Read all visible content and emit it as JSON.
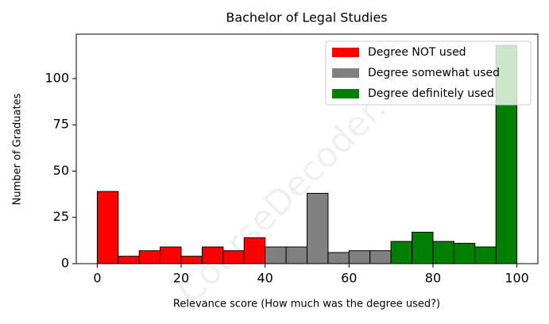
{
  "chart_data": {
    "type": "histogram",
    "title": "Bachelor of Legal Studies",
    "x_label": "Relevance score (How much was the degree used?)",
    "y_label": "Number of Graduates",
    "watermark": "CourseDecoder.com",
    "series": [
      {
        "name": "Degree NOT used",
        "color": "#ff0000",
        "bins": [
          0,
          5,
          10,
          15,
          20,
          25,
          30,
          35,
          40
        ],
        "values": [
          39,
          4,
          7,
          9,
          4,
          9,
          7,
          14
        ]
      },
      {
        "name": "Degree somewhat used",
        "color": "#808080",
        "bins": [
          40,
          45,
          50,
          55,
          60,
          65,
          70
        ],
        "values": [
          9,
          9,
          38,
          6,
          7,
          7
        ]
      },
      {
        "name": "Degree definitely used",
        "color": "#008000",
        "bins": [
          70,
          75,
          80,
          85,
          90,
          95,
          100
        ],
        "values": [
          12,
          17,
          12,
          11,
          9,
          118
        ]
      }
    ],
    "xlim": [
      -5,
      105
    ],
    "ylim": [
      0,
      124
    ],
    "xticks": [
      0,
      20,
      40,
      60,
      80,
      100
    ],
    "yticks": [
      0,
      25,
      50,
      75,
      100
    ],
    "legend": "upper right"
  }
}
